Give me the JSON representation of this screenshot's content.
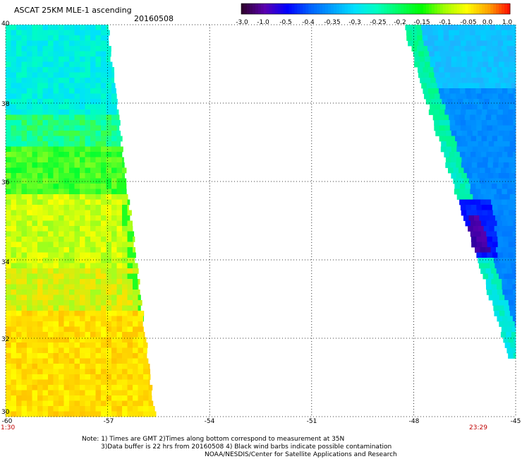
{
  "header": {
    "title": "ASCAT 25KM MLE-1 ascending",
    "date": "20160508"
  },
  "colorbar": {
    "labels": [
      "-3.0",
      "-1.0",
      "-0.5",
      "-0.4",
      "-0.35",
      "-0.3",
      "-0.25",
      "-0.2",
      "-0.15",
      "-0.1",
      "-0.05",
      "0.0",
      "1.0"
    ],
    "colors": [
      "#300030",
      "#5a00b0",
      "#0000ff",
      "#0060ff",
      "#00a0ff",
      "#00e0ff",
      "#00ffc0",
      "#00ff60",
      "#00ff00",
      "#a0ff00",
      "#ffff00",
      "#ffa000",
      "#ff0000"
    ]
  },
  "chart_data": {
    "type": "heatmap",
    "title": "ASCAT 25KM MLE-1 ascending",
    "xlim": [
      -60,
      -45
    ],
    "ylim": [
      30,
      40
    ],
    "x_ticks": [
      "-60",
      "-57",
      "-54",
      "-51",
      "-48",
      "-45"
    ],
    "y_ticks": [
      "30",
      "32",
      "34",
      "36",
      "38",
      "40"
    ],
    "grid": true,
    "swaths": [
      {
        "name": "left",
        "lon_west": -60,
        "lon_east_at_top": -57.0,
        "lon_east_at_bottom": -55.6,
        "dominant_range": "-0.2 to -0.05"
      },
      {
        "name": "right",
        "lon_west_at_top": -48.3,
        "lon_west_at_bottom": -45.2,
        "lon_east": -45,
        "dominant_range": "-0.4 to -0.3"
      }
    ],
    "time_labels": [
      "1:30",
      "23:29"
    ]
  },
  "axis": {
    "x_labels": [
      "-60",
      "-57",
      "-54",
      "-51",
      "-48",
      "-45"
    ],
    "y_labels": [
      "40",
      "38",
      "36",
      "34",
      "32",
      "30"
    ],
    "time_left": "1:30",
    "time_right": "23:29"
  },
  "notes": {
    "line1": "Note: 1) Times are GMT 2)Times along bottom correspond to measurement at 35N",
    "line2": "3)Data buffer is 22 hrs from 20160508 4) Black wind barbs indicate possible contamination",
    "line3": "NOAA/NESDIS/Center for Satellite Applications and Research"
  }
}
